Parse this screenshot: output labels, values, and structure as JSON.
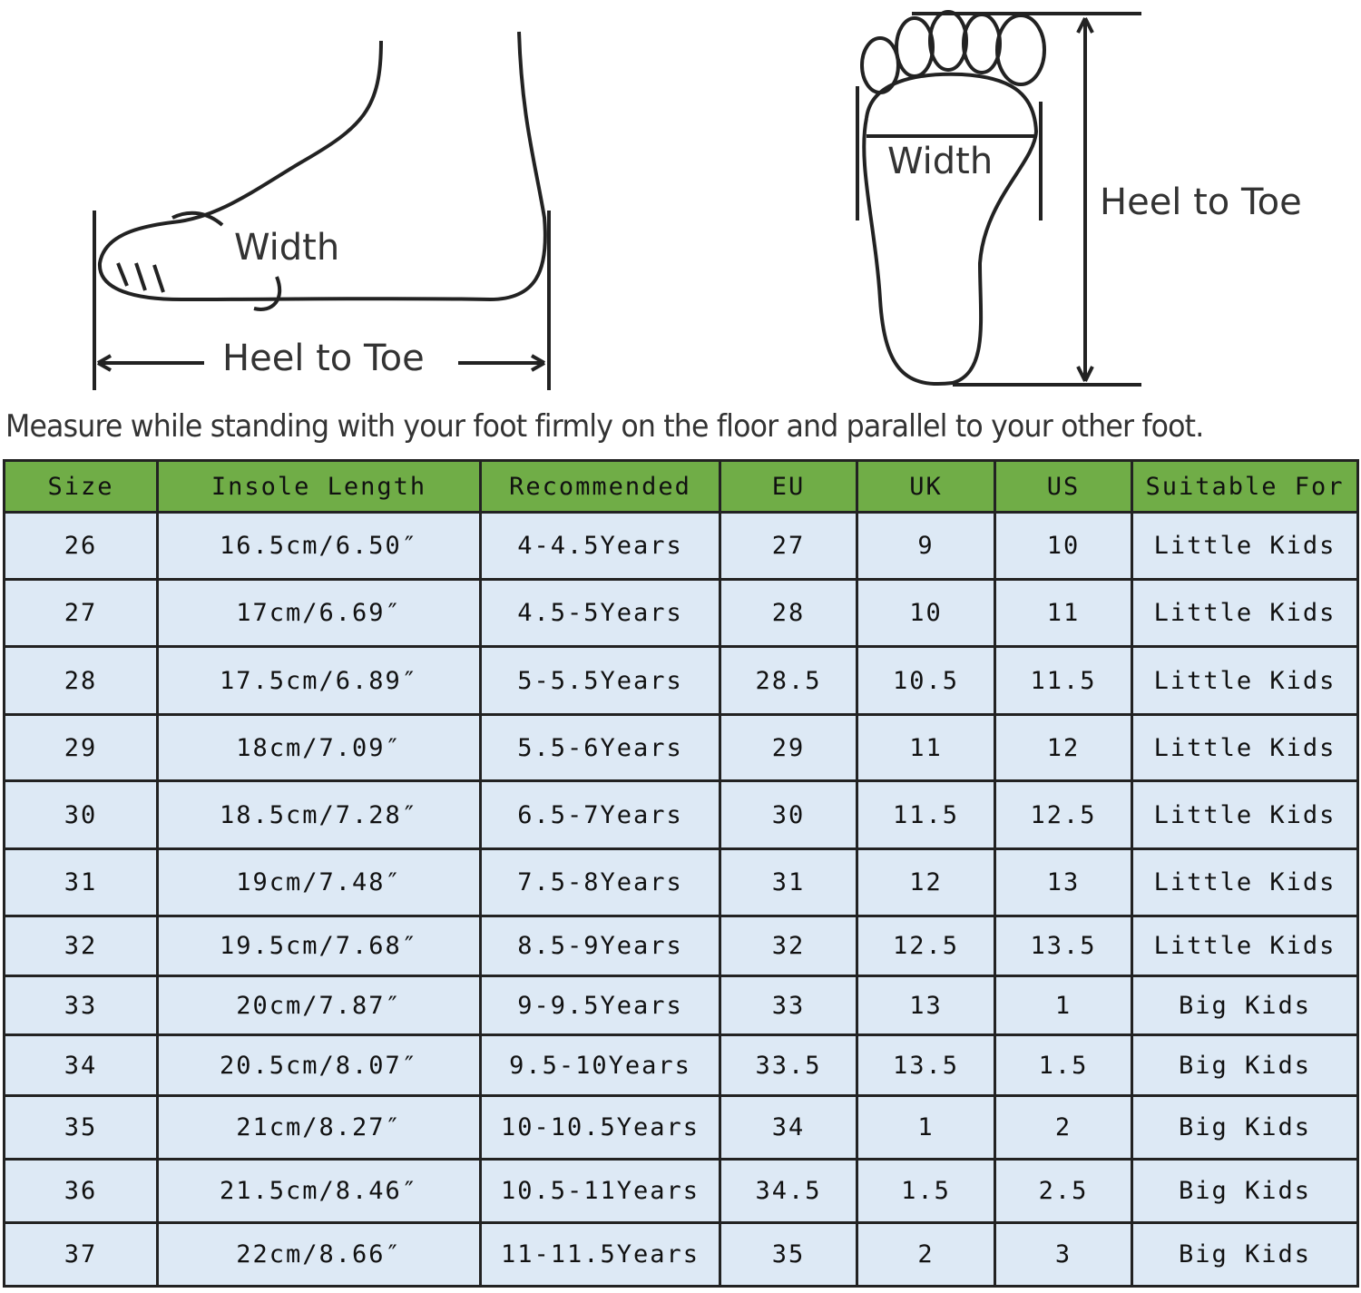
{
  "illustration": {
    "side_width_label": "Width",
    "side_length_label": "Heel to Toe",
    "top_width_label": "Width",
    "top_length_label": "Heel to Toe"
  },
  "note": "Measure while standing with your foot firmly on the floor and parallel to your other foot.",
  "colors": {
    "header_bg": "#70ad47",
    "cell_bg": "#dde9f5"
  },
  "table": {
    "headers": [
      "Size",
      "Insole Length",
      "Recommended",
      "EU",
      "UK",
      "US",
      "Suitable For"
    ],
    "rows": [
      [
        "26",
        "16.5cm/6.50″",
        "4-4.5Years",
        "27",
        "9",
        "10",
        "Little Kids"
      ],
      [
        "27",
        "17cm/6.69″",
        "4.5-5Years",
        "28",
        "10",
        "11",
        "Little Kids"
      ],
      [
        "28",
        "17.5cm/6.89″",
        "5-5.5Years",
        "28.5",
        "10.5",
        "11.5",
        "Little Kids"
      ],
      [
        "29",
        "18cm/7.09″",
        "5.5-6Years",
        "29",
        "11",
        "12",
        "Little Kids"
      ],
      [
        "30",
        "18.5cm/7.28″",
        "6.5-7Years",
        "30",
        "11.5",
        "12.5",
        "Little Kids"
      ],
      [
        "31",
        "19cm/7.48″",
        "7.5-8Years",
        "31",
        "12",
        "13",
        "Little Kids"
      ],
      [
        "32",
        "19.5cm/7.68″",
        "8.5-9Years",
        "32",
        "12.5",
        "13.5",
        "Little Kids"
      ],
      [
        "33",
        "20cm/7.87″",
        "9-9.5Years",
        "33",
        "13",
        "1",
        "Big Kids"
      ],
      [
        "34",
        "20.5cm/8.07″",
        "9.5-10Years",
        "33.5",
        "13.5",
        "1.5",
        "Big Kids"
      ],
      [
        "35",
        "21cm/8.27″",
        "10-10.5Years",
        "34",
        "1",
        "2",
        "Big Kids"
      ],
      [
        "36",
        "21.5cm/8.46″",
        "10.5-11Years",
        "34.5",
        "1.5",
        "2.5",
        "Big Kids"
      ],
      [
        "37",
        "22cm/8.66″",
        "11-11.5Years",
        "35",
        "2",
        "3",
        "Big Kids"
      ]
    ]
  }
}
